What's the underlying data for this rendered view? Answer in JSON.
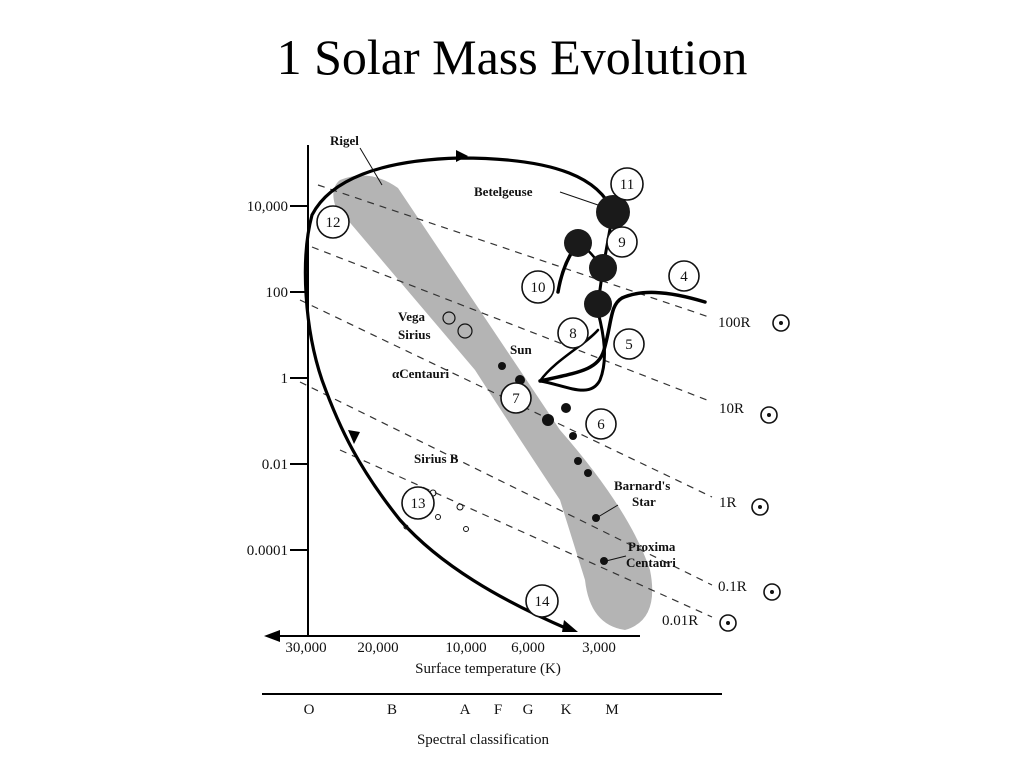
{
  "slide": {
    "title": "1 Solar Mass Evolution"
  },
  "diagram": {
    "y_ticks": [
      "10,000",
      "100",
      "1",
      "0.01",
      "0.0001"
    ],
    "x_ticks": [
      "30,000",
      "20,000",
      "10,000",
      "6,000",
      "3,000"
    ],
    "x_axis_label": "Surface temperature (K)",
    "spectral_classes": [
      "O",
      "B",
      "A",
      "F",
      "G",
      "K",
      "M"
    ],
    "spectral_label": "Spectral classification",
    "radius_lines": [
      "100R",
      "10R",
      "1R",
      "0.1R",
      "0.01R"
    ],
    "stars": {
      "rigel": "Rigel",
      "betelgeuse": "Betelgeuse",
      "vega": "Vega",
      "sirius": "Sirius",
      "sun": "Sun",
      "alpha_centauri": "αCentauri",
      "sirius_b": "Sirius B",
      "barnards_1": "Barnard's",
      "barnards_2": "Star",
      "proxima_1": "Proxima",
      "proxima_2": "Centauri"
    },
    "stages": [
      "4",
      "5",
      "6",
      "7",
      "8",
      "9",
      "10",
      "11",
      "12",
      "13",
      "14"
    ]
  }
}
